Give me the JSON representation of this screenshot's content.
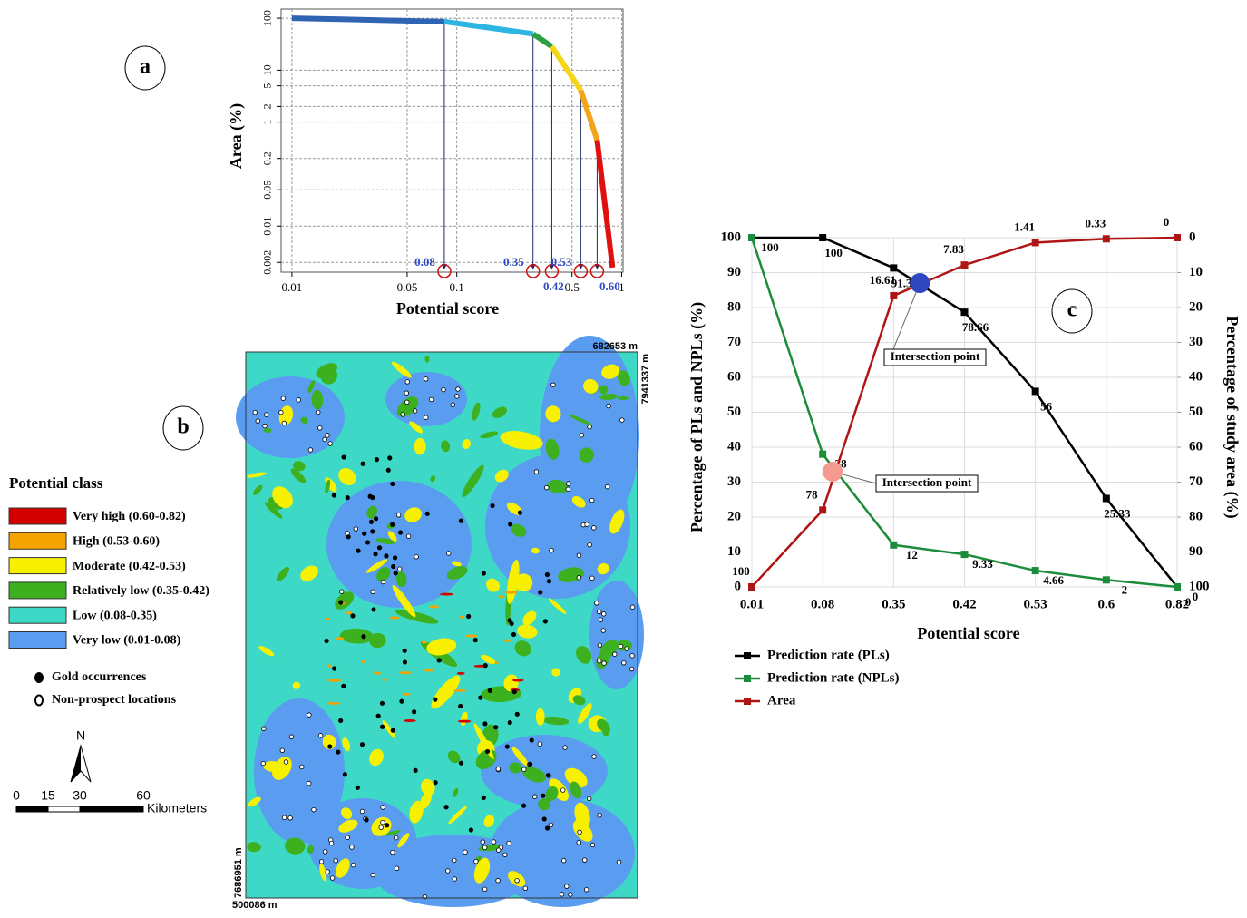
{
  "chart_data": [
    {
      "type": "line",
      "label": "a",
      "xlabel": "Potential score",
      "ylabel": "Area (%)",
      "xlog": true,
      "ylog": true,
      "xlim": [
        0.0086,
        1.02
      ],
      "ylim": [
        0.0013,
        150
      ],
      "xticks": [
        0.01,
        0.05,
        0.1,
        0.5,
        1
      ],
      "yticks": [
        0.002,
        0.01,
        0.05,
        0.2,
        1,
        2,
        5,
        10,
        100
      ],
      "grid": true,
      "series": [
        {
          "color": "#2f63b3",
          "x": [
            0.01,
            0.084
          ],
          "values": [
            100,
            86
          ]
        },
        {
          "color": "#2bb5e0",
          "x": [
            0.084,
            0.29
          ],
          "values": [
            86,
            50
          ]
        },
        {
          "color": "#2ea043",
          "x": [
            0.29,
            0.377
          ],
          "values": [
            50,
            28.6
          ]
        },
        {
          "color": "#f5d518",
          "x": [
            0.377,
            0.565
          ],
          "values": [
            28.6,
            4.1
          ]
        },
        {
          "color": "#f2a51a",
          "x": [
            0.565,
            0.71
          ],
          "values": [
            4.1,
            0.45
          ]
        },
        {
          "color": "#e01010",
          "x": [
            0.71,
            0.88
          ],
          "values": [
            0.45,
            0.0016
          ]
        }
      ],
      "annotations": [
        {
          "label": "0.08",
          "x": 0.084
        },
        {
          "label": "0.35",
          "x": 0.29
        },
        {
          "label": "0.42",
          "x": 0.377
        },
        {
          "label": "0.53",
          "x": 0.565
        },
        {
          "label": "0.60",
          "x": 0.71
        }
      ]
    },
    {
      "type": "line",
      "label": "c",
      "xlabel": "Potential score",
      "ylabel": "Percentage of PLs and NPLs (%)",
      "y2label": "Percentage of study area (%)",
      "categories": [
        "0.01",
        "0.08",
        "0.35",
        "0.42",
        "0.53",
        "0.6",
        "0.82"
      ],
      "ylim": [
        0,
        100
      ],
      "yticks": [
        0,
        10,
        20,
        30,
        40,
        50,
        60,
        70,
        80,
        90,
        100
      ],
      "y2lim": [
        100,
        0
      ],
      "y2ticks": [
        0,
        10,
        20,
        30,
        40,
        50,
        60,
        70,
        80,
        90,
        100
      ],
      "grid": true,
      "series": [
        {
          "name": "Prediction rate (PLs)",
          "color": "#000000",
          "values": [
            100,
            100,
            91.33,
            78.66,
            56,
            25.33,
            0
          ]
        },
        {
          "name": "Prediction rate (NPLs)",
          "color": "#1a8c3a",
          "values": [
            100,
            38,
            12,
            9.33,
            4.66,
            2,
            0
          ]
        },
        {
          "name": "Area",
          "color": "#b01515",
          "axis": "y2",
          "values": [
            100,
            78,
            16.61,
            7.83,
            1.41,
            0.33,
            0
          ]
        }
      ],
      "intersections": [
        {
          "label": "Intersection point",
          "x": 2.37,
          "y": 87,
          "color": "#2f48c0"
        },
        {
          "label": "Intersection point",
          "x": 1.14,
          "y": 33,
          "color": "#f59a90"
        }
      ]
    }
  ],
  "map": {
    "label": "b",
    "legend_title": "Potential class",
    "classes": [
      {
        "label": "Very high (0.60-0.82)",
        "color": "#d40000"
      },
      {
        "label": "High (0.53-0.60)",
        "color": "#f5a300"
      },
      {
        "label": "Moderate (0.42-0.53)",
        "color": "#f7f000"
      },
      {
        "label": "Relatively low (0.35-0.42)",
        "color": "#3cb01e"
      },
      {
        "label": "Low (0.08-0.35)",
        "color": "#3ed9c6"
      },
      {
        "label": "Very low (0.01-0.08)",
        "color": "#5a9cf0"
      }
    ],
    "symbols": [
      "Gold occurrences",
      "Non-prospect locations"
    ],
    "north": "N",
    "scale_ticks": [
      0,
      15,
      30,
      60
    ],
    "scale_unit": "Kilometers",
    "coords": {
      "top_right_x": "682653 m",
      "top_right_y": "7941337 m",
      "bottom_left_y": "7686951 m",
      "bottom_left_x": "500086 m"
    }
  }
}
